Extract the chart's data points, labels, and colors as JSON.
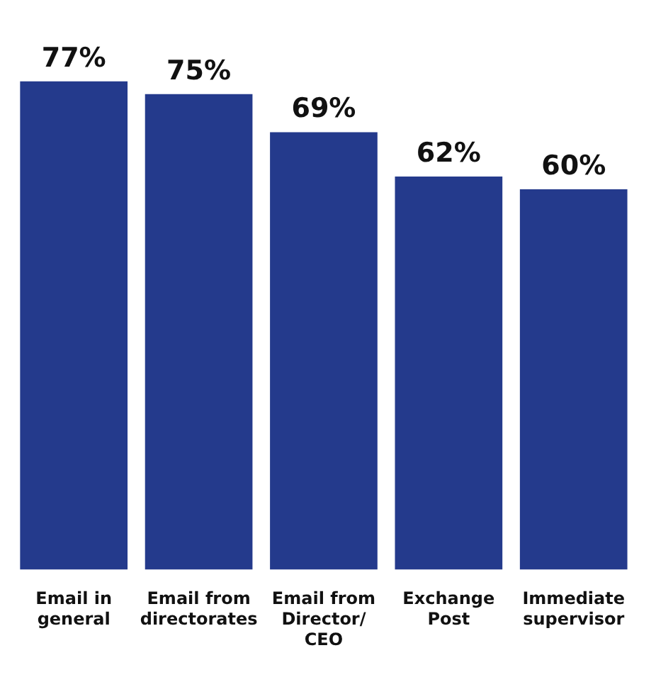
{
  "chart_data": {
    "type": "bar",
    "categories": [
      "Email in general",
      "Email from directorates",
      "Email from Director/ CEO",
      "Exchange Post",
      "Immediate supervisor"
    ],
    "values": [
      77,
      75,
      69,
      62,
      60
    ],
    "value_labels": [
      "77%",
      "75%",
      "69%",
      "62%",
      "60%"
    ],
    "color": "#243a8c",
    "tick_labels": "x",
    "grid": false,
    "legend": false
  }
}
